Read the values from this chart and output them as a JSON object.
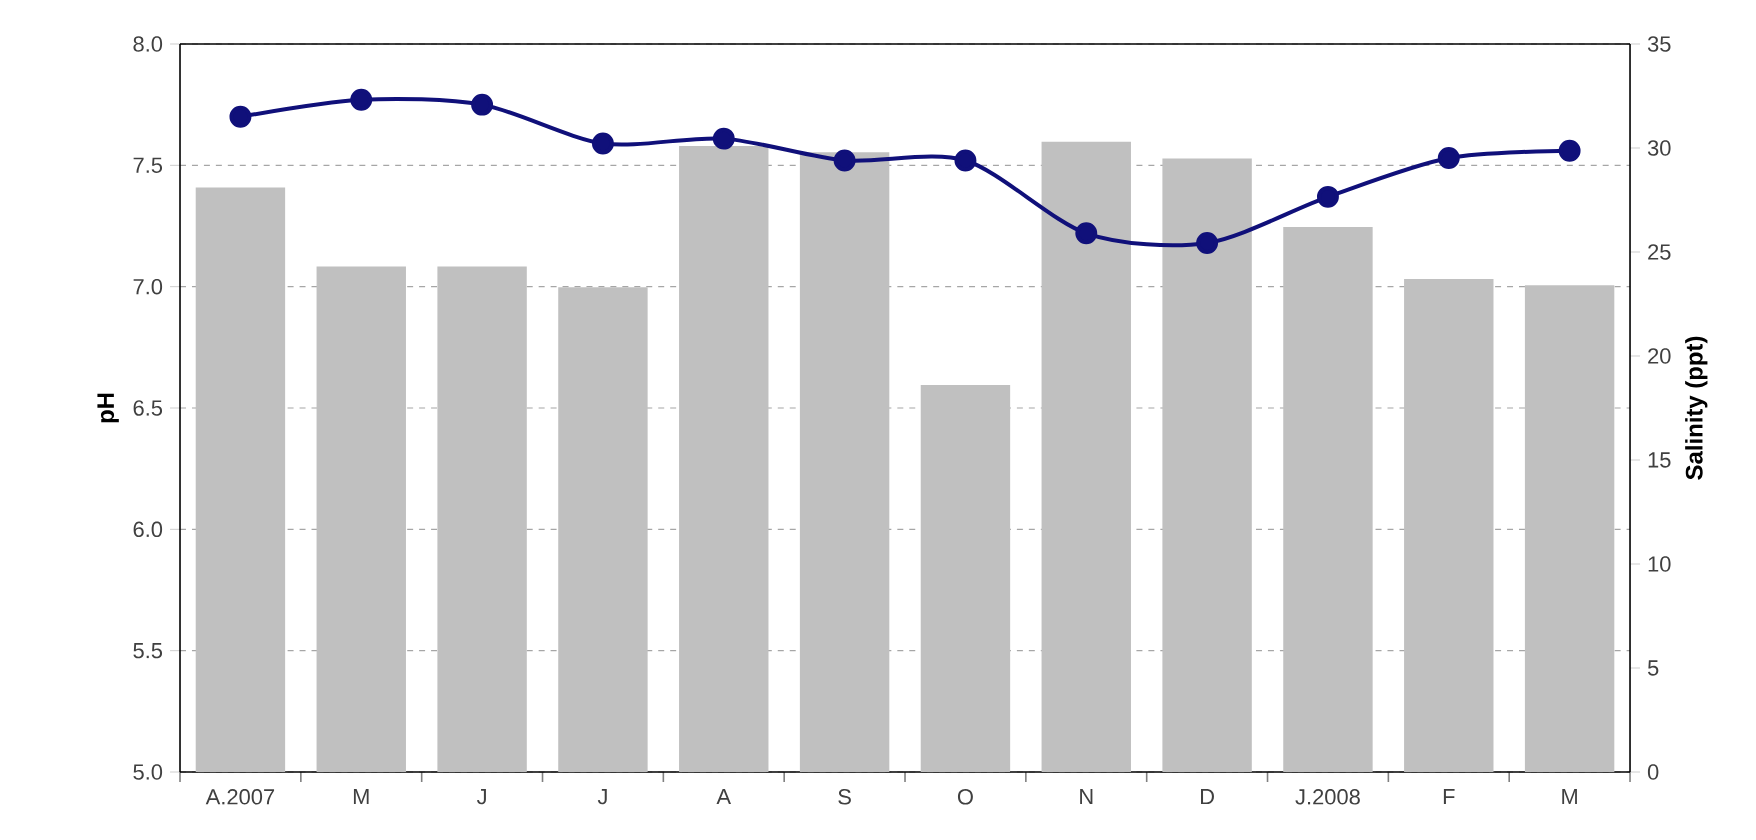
{
  "chart_data": {
    "type": "bar",
    "categories": [
      "A.2007",
      "M",
      "J",
      "J",
      "A",
      "S",
      "O",
      "N",
      "D",
      "J.2008",
      "F",
      "M"
    ],
    "ylabel": "pH",
    "y2label": "Salinity (ppt)",
    "ylim": [
      5,
      8
    ],
    "yticks": [
      {
        "value": 5,
        "label": "5.0"
      },
      {
        "value": 5.5,
        "label": "5.5"
      },
      {
        "value": 6,
        "label": "6.0"
      },
      {
        "value": 6.5,
        "label": "6.5"
      },
      {
        "value": 7,
        "label": "7.0"
      },
      {
        "value": 7.5,
        "label": "7.5"
      },
      {
        "value": 8,
        "label": "8.0"
      }
    ],
    "y2lim": [
      0,
      35
    ],
    "y2ticks": [
      0,
      5,
      10,
      15,
      20,
      25,
      30,
      35
    ],
    "grid": "y",
    "marker": "circle",
    "line_style": "solid",
    "series": [
      {
        "axis": "y2",
        "color": "#c0c0c0",
        "values": [
          28.1,
          24.3,
          24.3,
          23.3,
          30.1,
          29.8,
          18.6,
          30.3,
          29.5,
          26.2,
          23.7,
          23.4
        ]
      },
      {
        "type": "line",
        "axis": "y",
        "color": "#10107a",
        "values": [
          7.7,
          7.77,
          7.75,
          7.59,
          7.61,
          7.52,
          7.52,
          7.22,
          7.18,
          7.37,
          7.53,
          7.56
        ]
      }
    ]
  }
}
